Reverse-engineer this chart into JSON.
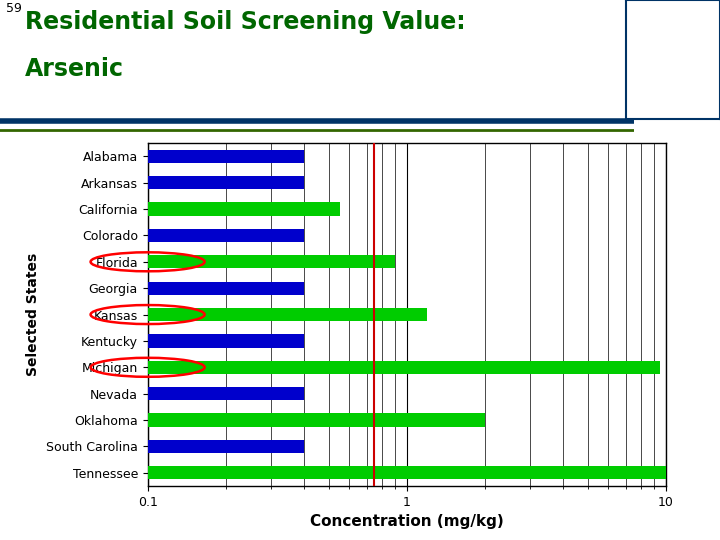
{
  "states": [
    "Tennessee",
    "South Carolina",
    "Oklahoma",
    "Nevada",
    "Michigan",
    "Kentucky",
    "Kansas",
    "Georgia",
    "Florida",
    "Colorado",
    "California",
    "Arkansas",
    "Alabama"
  ],
  "blue_values": [
    null,
    0.4,
    null,
    0.4,
    null,
    0.4,
    null,
    0.4,
    null,
    0.4,
    null,
    0.4,
    0.4
  ],
  "green_values": [
    10.0,
    null,
    2.0,
    null,
    9.5,
    null,
    1.2,
    null,
    0.9,
    null,
    0.55,
    null,
    null
  ],
  "circled": [
    "Florida",
    "Kansas",
    "Michigan"
  ],
  "red_line_x": 0.75,
  "xmin": 0.1,
  "xmax": 10.0,
  "blue_color": "#0000CC",
  "green_color": "#00CC00",
  "red_line_color": "#CC0000",
  "title_line1": "Residential Soil Screening Value:",
  "title_line2": "Arsenic",
  "slide_number": "59",
  "xlabel": "Concentration (mg/kg)",
  "ylabel": "Selected States",
  "bar_height": 0.5,
  "title_color": "#006600",
  "background_color": "#FFFFFF",
  "header_bar_color1": "#003366",
  "header_bar_color2": "#336600",
  "title_fontsize": 17,
  "axis_label_fontsize": 10,
  "tick_fontsize": 9
}
